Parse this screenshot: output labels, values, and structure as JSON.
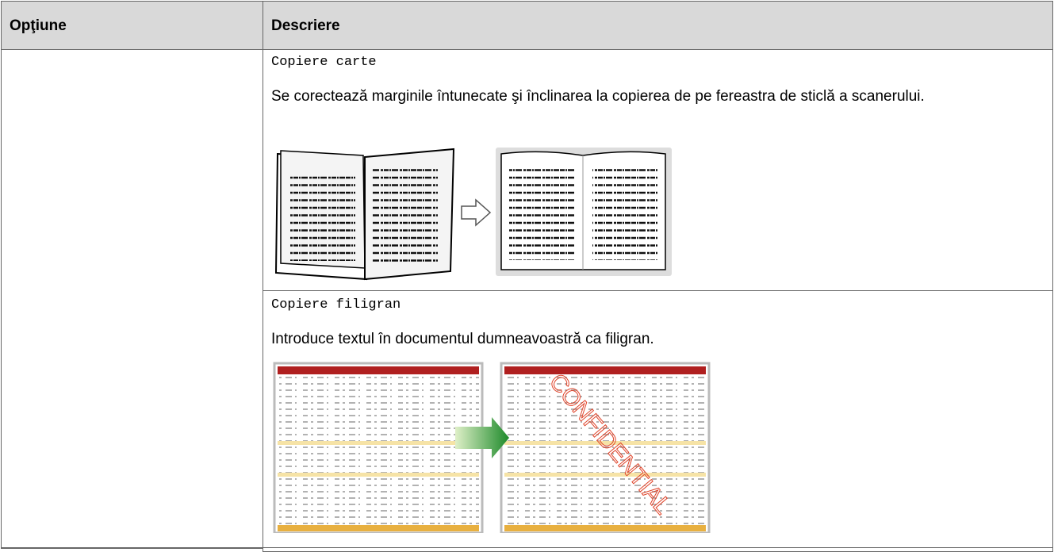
{
  "table": {
    "headers": [
      "Opţiune",
      "Descriere"
    ],
    "rows": [
      {
        "setting": "Copiere carte",
        "text": "Se corectează marginile întunecate şi înclinarea la copierea de pe fereastra de sticlă a scanerului."
      },
      {
        "setting": "Copiere filigran",
        "text": "Introduce textul în documentul dumneavoastră ca filigran.",
        "watermark": "CONFIDENTIAL"
      }
    ]
  }
}
